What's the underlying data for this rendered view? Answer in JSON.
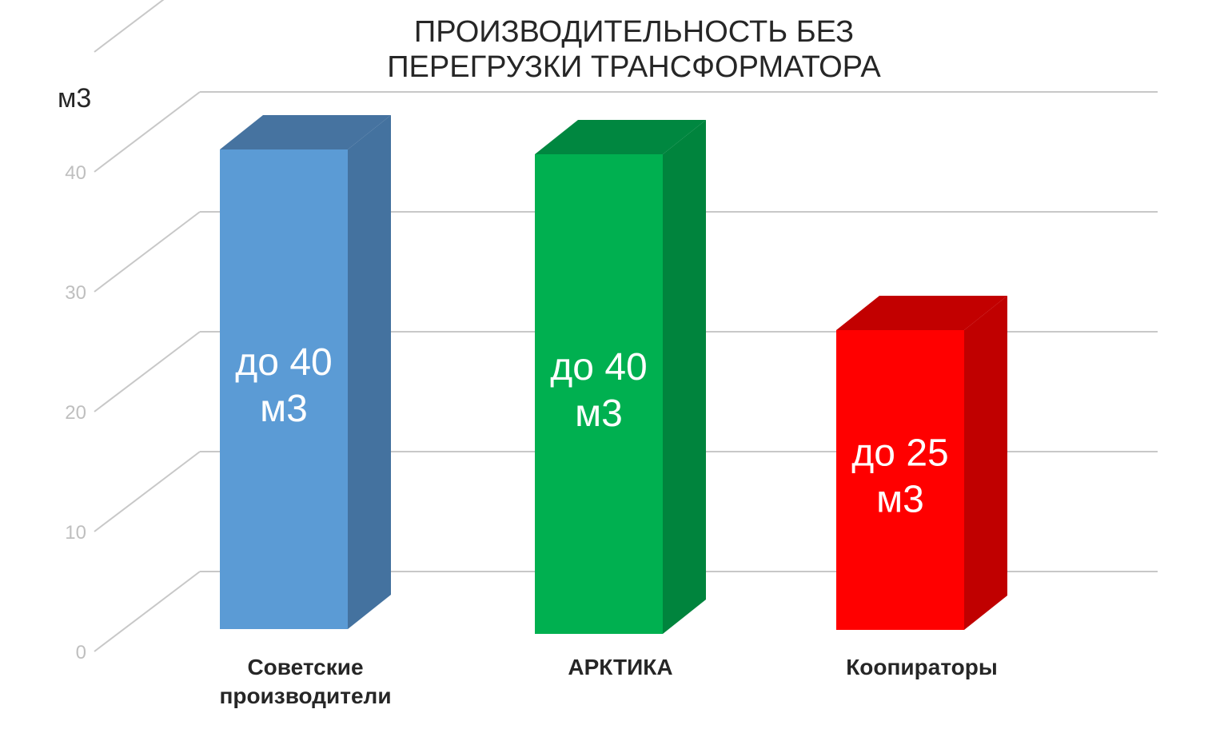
{
  "chart_data": {
    "type": "bar",
    "title_lines": [
      "ПРОИЗВОДИТЕЛЬНОСТЬ БЕЗ",
      "ПЕРЕГРУЗКИ ТРАНСФОРМАТОРА"
    ],
    "ylabel": "м3",
    "xlabel": "",
    "categories": [
      [
        "Советские",
        "производители"
      ],
      [
        "АРКТИКА"
      ],
      [
        "Коопираторы"
      ]
    ],
    "values": [
      40,
      40,
      25
    ],
    "data_labels": [
      [
        "до 40",
        "м3"
      ],
      [
        "до 40",
        "м3"
      ],
      [
        "до 25",
        "м3"
      ]
    ],
    "ylim": [
      0,
      40
    ],
    "yticks": [
      "0",
      "10",
      "20",
      "30",
      "40"
    ],
    "grid": true,
    "legend": "none",
    "colors": {
      "bars": [
        {
          "front": "#5B9BD5",
          "side": "#44729F",
          "top": "#4673A0"
        },
        {
          "front": "#00B050",
          "side": "#00843D",
          "top": "#008740"
        },
        {
          "front": "#FF0000",
          "side": "#C00000",
          "top": "#C20000"
        }
      ],
      "grid": "#C8C8C8",
      "tick_text": "#BFBFBF",
      "category_text": "#262626",
      "data_label_text": "#FFFFFF"
    }
  }
}
